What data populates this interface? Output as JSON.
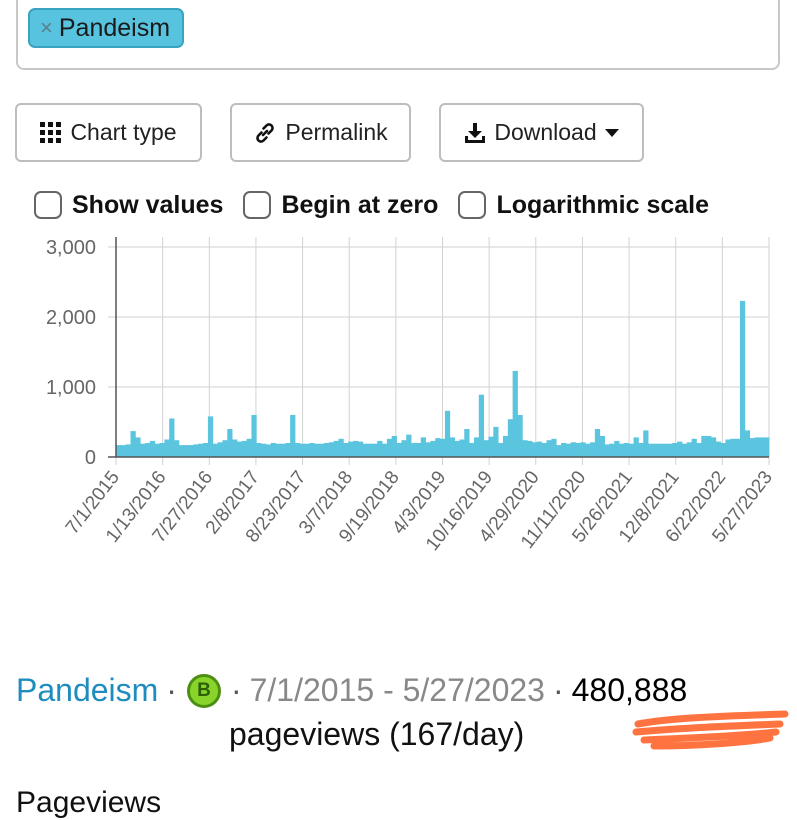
{
  "search": {
    "tag_remove": "×",
    "tag_label": "Pandeism"
  },
  "toolbar": {
    "chart_type_label": "Chart type",
    "permalink_label": "Permalink",
    "download_label": "Download"
  },
  "options": {
    "show_values_label": "Show values",
    "begin_at_zero_label": "Begin at zero",
    "log_scale_label": "Logarithmic scale"
  },
  "chart_data": {
    "type": "bar",
    "title": "",
    "xlabel": "",
    "ylabel": "",
    "ylim": [
      0,
      3000
    ],
    "yticks": [
      0,
      1000,
      2000,
      3000
    ],
    "ytick_labels": [
      "0",
      "1,000",
      "2,000",
      "3,000"
    ],
    "xticks": [
      "7/1/2015",
      "1/13/2016",
      "7/27/2016",
      "2/8/2017",
      "8/23/2017",
      "3/7/2018",
      "9/19/2018",
      "4/3/2019",
      "10/16/2019",
      "4/29/2020",
      "11/11/2020",
      "5/26/2021",
      "12/8/2021",
      "6/22/2022",
      "5/27/2023"
    ],
    "grid": true,
    "color": "#5bc5df",
    "series": [
      {
        "values": [
          170,
          170,
          180,
          370,
          280,
          190,
          200,
          230,
          190,
          200,
          250,
          550,
          240,
          170,
          170,
          170,
          180,
          190,
          200,
          580,
          190,
          210,
          240,
          400,
          250,
          220,
          230,
          260,
          600,
          200,
          190,
          180,
          200,
          190,
          190,
          200,
          600,
          200,
          190,
          190,
          200,
          190,
          190,
          200,
          210,
          230,
          260,
          200,
          220,
          230,
          220,
          190,
          190,
          190,
          230,
          190,
          260,
          300,
          200,
          240,
          320,
          200,
          200,
          280,
          210,
          230,
          270,
          260,
          660,
          280,
          230,
          250,
          400,
          200,
          280,
          890,
          240,
          290,
          430,
          200,
          300,
          540,
          1230,
          600,
          240,
          230,
          210,
          220,
          200,
          240,
          260,
          170,
          200,
          190,
          210,
          200,
          210,
          190,
          210,
          400,
          300,
          180,
          190,
          230,
          190,
          200,
          190,
          280,
          200,
          380,
          190,
          190,
          190,
          190,
          190,
          200,
          220,
          190,
          210,
          260,
          200,
          300,
          300,
          280,
          220,
          200,
          250,
          260,
          260,
          2230,
          380,
          270,
          280,
          280,
          280
        ]
      }
    ]
  },
  "footer": {
    "article": "Pandeism",
    "badge": "B",
    "date_range": "7/1/2015 - 5/27/2023",
    "total": "480,888",
    "pageviews": "pageviews (167/day)",
    "cut_text": "Pageviews"
  }
}
